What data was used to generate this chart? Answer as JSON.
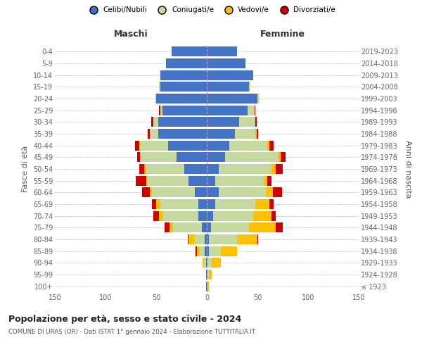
{
  "age_groups": [
    "100+",
    "95-99",
    "90-94",
    "85-89",
    "80-84",
    "75-79",
    "70-74",
    "65-69",
    "60-64",
    "55-59",
    "50-54",
    "45-49",
    "40-44",
    "35-39",
    "30-34",
    "25-29",
    "20-24",
    "15-19",
    "10-14",
    "5-9",
    "0-4"
  ],
  "birth_years": [
    "≤ 1923",
    "1924-1928",
    "1929-1933",
    "1934-1938",
    "1939-1943",
    "1944-1948",
    "1949-1953",
    "1954-1958",
    "1959-1963",
    "1964-1968",
    "1969-1973",
    "1974-1978",
    "1979-1983",
    "1984-1988",
    "1989-1993",
    "1994-1998",
    "1999-2003",
    "2004-2008",
    "2009-2013",
    "2014-2018",
    "2019-2023"
  ],
  "males": {
    "celibi": [
      1,
      1,
      1,
      2,
      2,
      5,
      8,
      8,
      12,
      18,
      22,
      30,
      38,
      48,
      48,
      44,
      50,
      46,
      46,
      40,
      35
    ],
    "coniugati": [
      0,
      0,
      2,
      5,
      10,
      28,
      35,
      38,
      42,
      40,
      38,
      35,
      28,
      8,
      5,
      2,
      1,
      1,
      0,
      0,
      0
    ],
    "vedovi": [
      0,
      0,
      1,
      3,
      6,
      4,
      4,
      4,
      2,
      2,
      2,
      1,
      1,
      0,
      0,
      0,
      0,
      0,
      0,
      0,
      0
    ],
    "divorziati": [
      0,
      0,
      0,
      1,
      1,
      5,
      6,
      4,
      8,
      10,
      5,
      3,
      4,
      2,
      2,
      1,
      0,
      0,
      0,
      0,
      0
    ]
  },
  "females": {
    "nubili": [
      1,
      1,
      1,
      2,
      2,
      4,
      6,
      8,
      12,
      8,
      12,
      18,
      22,
      28,
      32,
      40,
      50,
      42,
      46,
      38,
      30
    ],
    "coniugate": [
      0,
      1,
      4,
      12,
      28,
      38,
      40,
      40,
      46,
      48,
      52,
      52,
      38,
      20,
      16,
      7,
      2,
      1,
      0,
      0,
      0
    ],
    "vedove": [
      1,
      3,
      9,
      16,
      20,
      26,
      18,
      14,
      7,
      4,
      4,
      3,
      2,
      1,
      0,
      0,
      0,
      0,
      0,
      0,
      0
    ],
    "divorziate": [
      0,
      0,
      0,
      0,
      1,
      7,
      4,
      4,
      9,
      4,
      7,
      5,
      4,
      2,
      1,
      1,
      0,
      0,
      0,
      0,
      0
    ]
  },
  "colors": {
    "celibi": "#4472c4",
    "coniugati": "#c5d9a0",
    "vedovi": "#ffc000",
    "divorziati": "#cc0000"
  },
  "xlim": 150,
  "title": "Popolazione per età, sesso e stato civile - 2024",
  "subtitle": "COMUNE DI URAS (OR) - Dati ISTAT 1° gennaio 2024 - Elaborazione TUTTITALIA.IT",
  "ylabel": "Fasce di età",
  "right_ylabel": "Anni di nascita",
  "xlabel_maschi": "Maschi",
  "xlabel_femmine": "Femmine",
  "legend_labels": [
    "Celibi/Nubili",
    "Coniugati/e",
    "Vedovi/e",
    "Divorziati/e"
  ],
  "bg_color": "#ffffff",
  "bar_height": 0.85
}
